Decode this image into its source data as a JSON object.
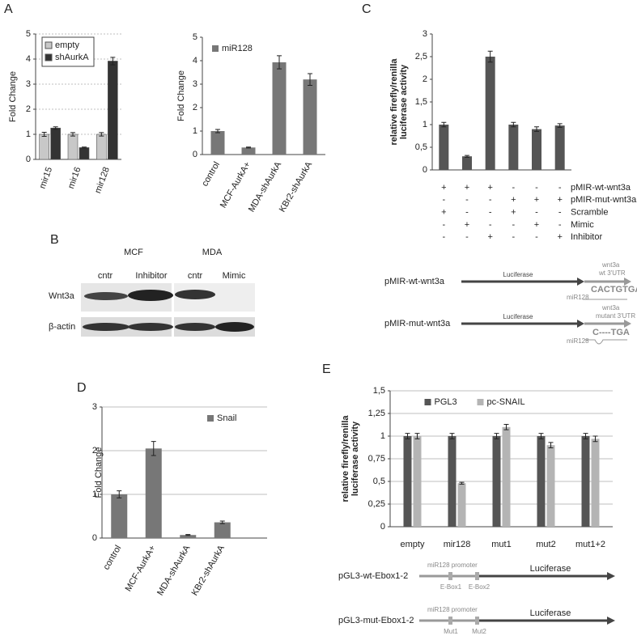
{
  "panel_labels": [
    "A",
    "B",
    "C",
    "D",
    "E"
  ],
  "chart_data": [
    {
      "type": "bar",
      "categories": [
        "mir15",
        "mir16",
        "mir128"
      ],
      "ylabel": "Fold Change",
      "ylim": [
        0,
        5
      ],
      "yticks": [
        0,
        1,
        2,
        3,
        4,
        5
      ],
      "grid": true,
      "legend": "upper left",
      "legend_frame": true,
      "series": [
        {
          "name": "empty",
          "color": "#c8c8c8",
          "values": [
            1,
            1,
            1
          ],
          "errors": [
            0.08,
            0.07,
            0.07
          ]
        },
        {
          "name": "shAurkA",
          "color": "#333333",
          "values": [
            1.25,
            0.47,
            3.92
          ],
          "errors": [
            0.05,
            0.02,
            0.15
          ]
        }
      ]
    },
    {
      "type": "bar",
      "categories": [
        "control",
        "MCF-AurkA+",
        "MDA-shAurkA",
        "KBr2-shAurkA"
      ],
      "ylabel": "Fold Change",
      "ylim": [
        0,
        5
      ],
      "yticks": [
        0,
        1,
        2,
        3,
        4,
        5
      ],
      "grid": false,
      "legend": "upper left",
      "legend_frame": false,
      "series": [
        {
          "name": "miR128",
          "color": "#777777",
          "values": [
            1,
            0.3,
            3.93,
            3.2
          ],
          "errors": [
            0.07,
            0.02,
            0.28,
            0.25
          ]
        }
      ]
    },
    {
      "type": "bar",
      "ylabel": [
        "relative firefly/renilla",
        "luciferase activity"
      ],
      "ylim": [
        0,
        3
      ],
      "yticks": [
        0,
        {
          "value": 0.5,
          "label": "0,5"
        },
        1,
        {
          "value": 1.5,
          "label": "1,5"
        },
        2,
        {
          "value": 2.5,
          "label": "2,5"
        },
        3
      ],
      "grid": false,
      "series": [
        {
          "color": "#555555",
          "values": [
            1,
            0.3,
            2.5,
            1,
            0.9,
            0.98
          ],
          "errors": [
            0.05,
            0.02,
            0.12,
            0.05,
            0.05,
            0.04
          ]
        }
      ]
    },
    {
      "type": "bar",
      "categories": [
        "control",
        "MCF-AurkA+",
        "MDA-shAurkA",
        "KBr2-shAurkA"
      ],
      "ylabel": "Fold Change",
      "ylim": [
        0,
        3
      ],
      "yticks": [
        0,
        1,
        2,
        3
      ],
      "grid": true,
      "legend": "upper right",
      "legend_frame": false,
      "series": [
        {
          "name": "Snail",
          "color": "#777777",
          "values": [
            1,
            2.05,
            0.07,
            0.36
          ],
          "errors": [
            0.08,
            0.16,
            0.01,
            0.03
          ]
        }
      ]
    },
    {
      "type": "bar",
      "categories": [
        "empty",
        "mir128",
        "mut1",
        "mut2",
        "mut1+2"
      ],
      "ylabel": [
        "relative firefly/renilla",
        "luciferase activity"
      ],
      "ylim": [
        0,
        1.5
      ],
      "yticks": [
        0,
        {
          "value": 0.25,
          "label": "0,25"
        },
        {
          "value": 0.5,
          "label": "0,5"
        },
        {
          "value": 0.75,
          "label": "0,75"
        },
        1,
        {
          "value": 1.25,
          "label": "1,25"
        },
        {
          "value": 1.5,
          "label": "1,5"
        }
      ],
      "grid": true,
      "legend": "upper center",
      "legend_frame": false,
      "series": [
        {
          "name": "PGL3",
          "color": "#555555",
          "values": [
            1,
            1,
            1,
            1,
            1
          ],
          "errors": [
            0.03,
            0.03,
            0.03,
            0.03,
            0.03
          ]
        },
        {
          "name": "pc-SNAIL",
          "color": "#b4b4b4",
          "values": [
            1,
            0.48,
            1.1,
            0.9,
            0.97
          ],
          "errors": [
            0.03,
            0.01,
            0.03,
            0.03,
            0.03
          ]
        }
      ]
    }
  ],
  "table_c": {
    "rows": [
      {
        "label": "pMIR-wt-wnt3a",
        "cells": [
          "+",
          "+",
          "+",
          "-",
          "-",
          "-"
        ]
      },
      {
        "label": "pMIR-mut-wnt3a",
        "cells": [
          "-",
          "-",
          "-",
          "+",
          "+",
          "+"
        ]
      },
      {
        "label": "Scramble",
        "cells": [
          "+",
          "-",
          "-",
          "+",
          "-",
          "-"
        ]
      },
      {
        "label": "Mimic",
        "cells": [
          "-",
          "+",
          "-",
          "-",
          "+",
          "-"
        ]
      },
      {
        "label": "Inhibitor",
        "cells": [
          "-",
          "-",
          "+",
          "-",
          "-",
          "+"
        ]
      }
    ]
  },
  "blot": {
    "groups": [
      "MCF",
      "MDA"
    ],
    "lanes": [
      "cntr",
      "Inhibitor",
      "cntr",
      "Mimic"
    ],
    "rows": [
      "Wnt3a",
      "β-actin"
    ]
  },
  "construct_c": [
    {
      "name": "pMIR-wt-wnt3a",
      "gene": "Luciferase",
      "utr": [
        "wnt3a",
        "wt  3'UTR"
      ],
      "site": "CACTGTGA",
      "mirna": "miR128"
    },
    {
      "name": "pMIR-mut-wnt3a",
      "gene": "Luciferase",
      "utr": [
        "wnt3a",
        "mutant  3'UTR"
      ],
      "site": "C----TGA",
      "mirna": "miR128"
    }
  ],
  "construct_e": [
    {
      "name": "pGL3-wt-Ebox1-2",
      "promoter": "miR128 promoter",
      "sites": [
        "E-Box1",
        "E-Box2"
      ],
      "gene": "Luciferase"
    },
    {
      "name": "pGL3-mut-Ebox1-2",
      "promoter": "miR128 promoter",
      "sites": [
        "Mut1",
        "Mut2"
      ],
      "gene": "Luciferase"
    }
  ]
}
